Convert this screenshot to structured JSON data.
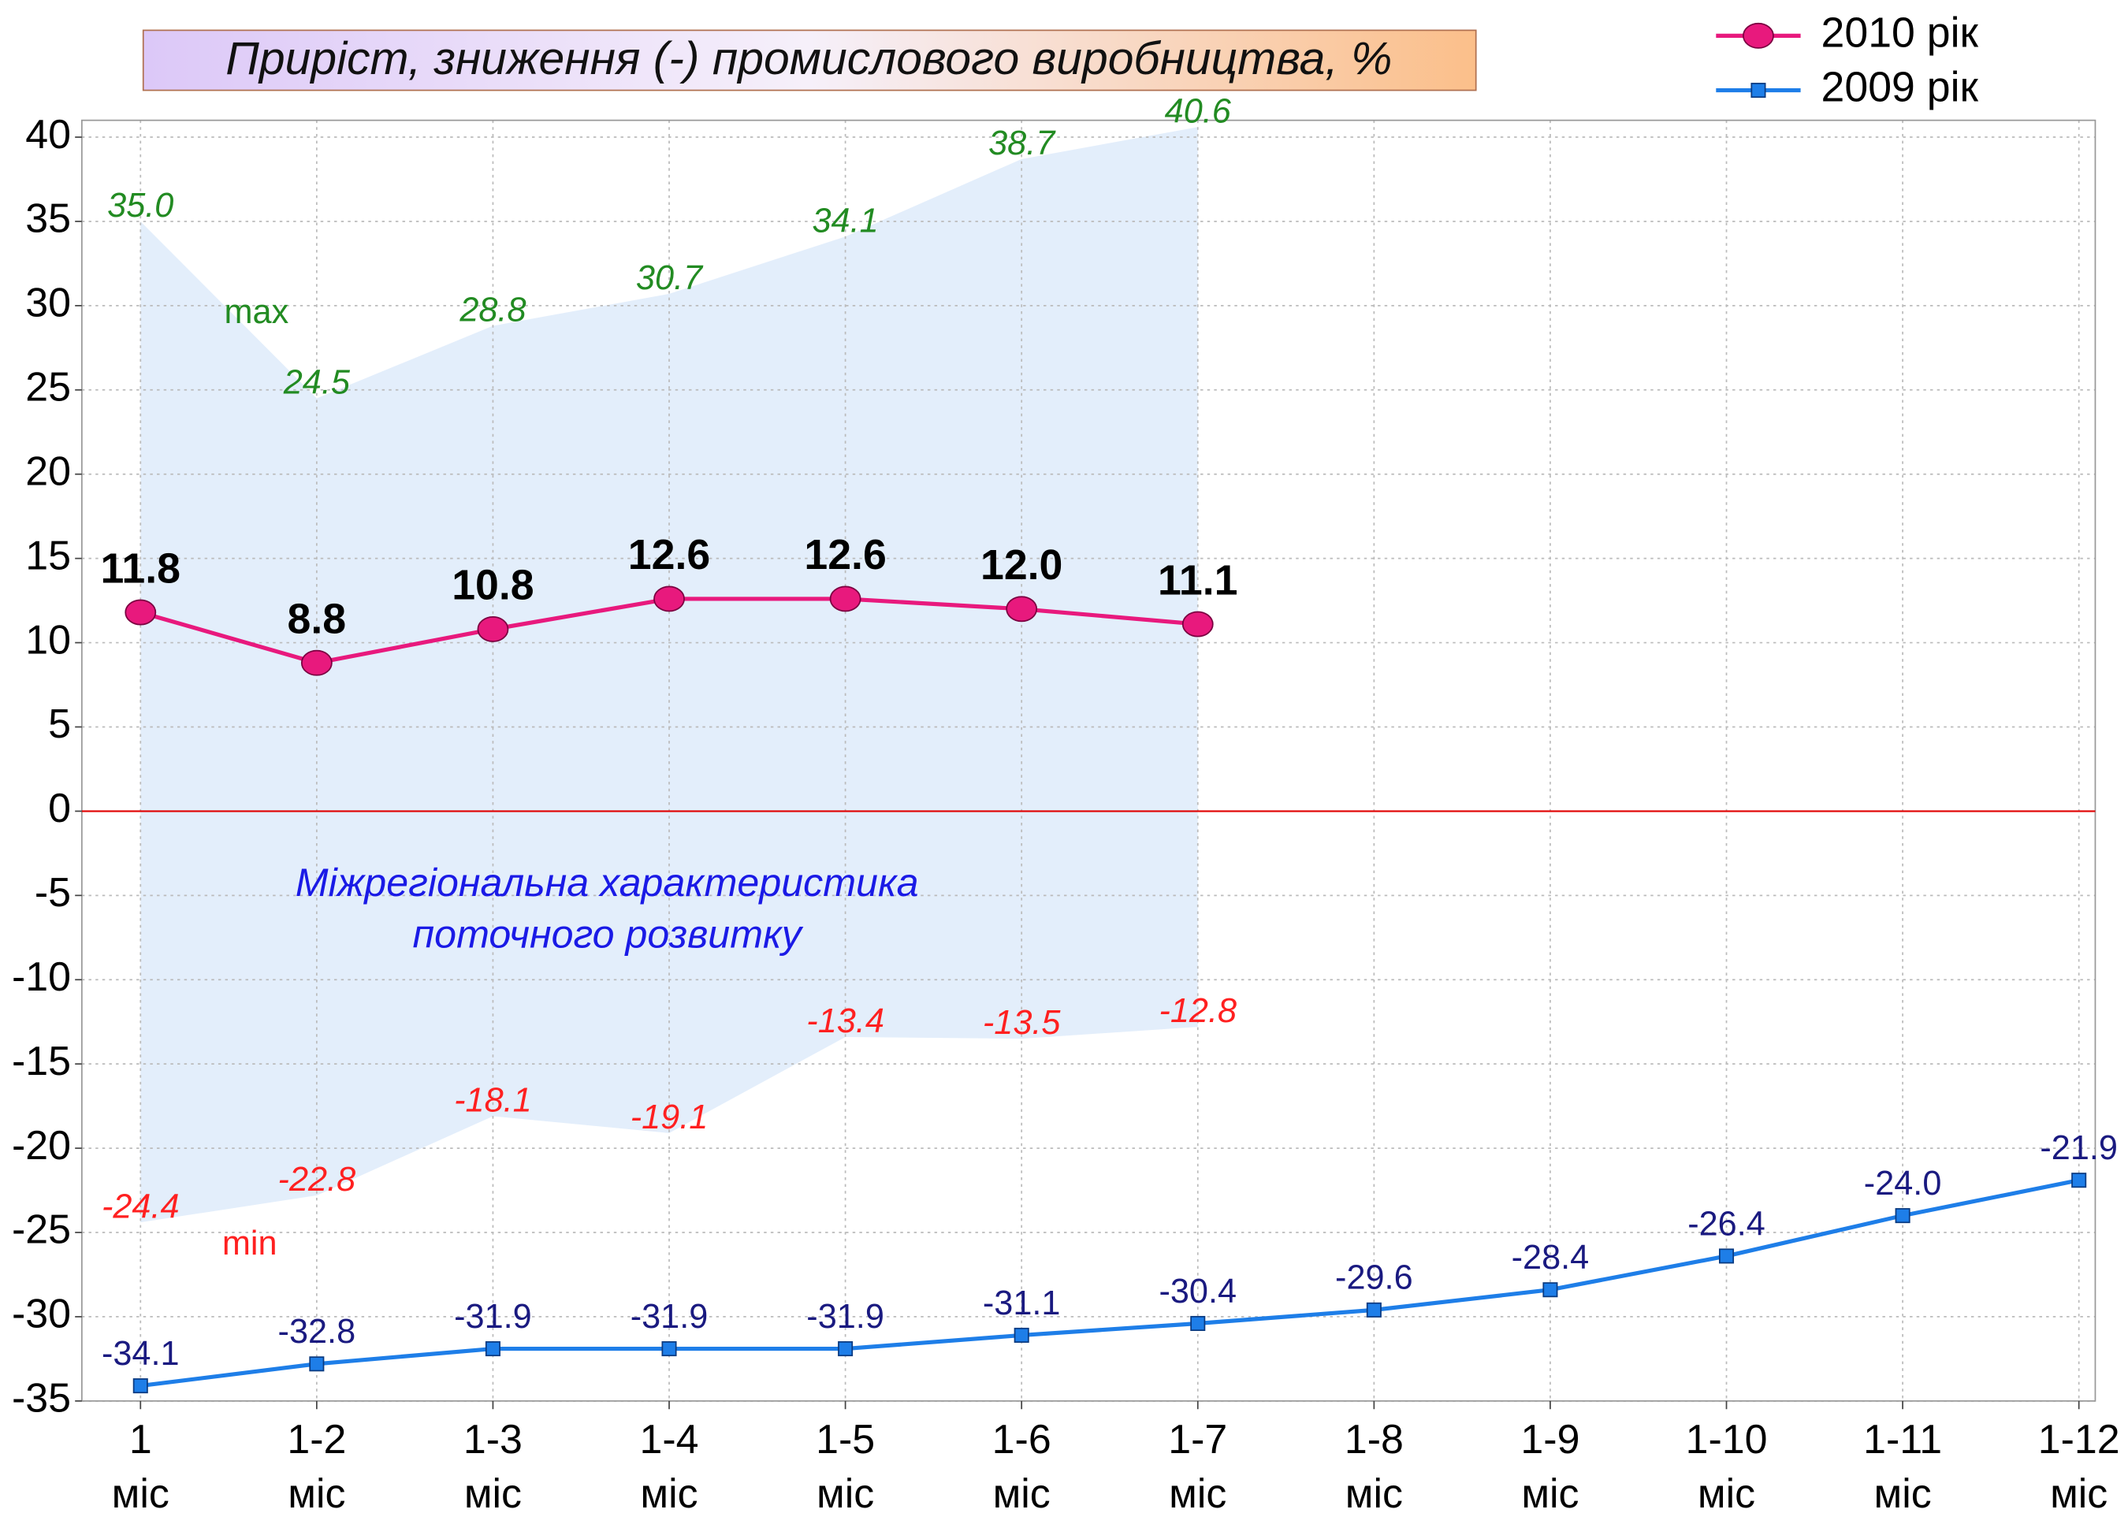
{
  "chart_data": {
    "type": "line",
    "title": "Приріст, зниження (-) промислового виробництва, %",
    "categories": [
      "1 міс",
      "1-2 міс",
      "1-3 міс",
      "1-4 міс",
      "1-5 міс",
      "1-6 міс",
      "1-7 міс",
      "1-8 міс",
      "1-9 міс",
      "1-10 міс",
      "1-11 міс",
      "1-12 міс"
    ],
    "series": [
      {
        "name": "2010 рік",
        "color": "#e8197d",
        "marker": "circle",
        "values": [
          11.8,
          8.8,
          10.8,
          12.6,
          12.6,
          12.0,
          11.1,
          null,
          null,
          null,
          null,
          null
        ],
        "value_labels": [
          "11.8",
          "8.8",
          "10.8",
          "12.6",
          "12.6",
          "12.0",
          "11.1",
          null,
          null,
          null,
          null,
          null
        ]
      },
      {
        "name": "2009 рік",
        "color": "#1e7ee8",
        "marker": "square",
        "values": [
          -34.1,
          -32.8,
          -31.9,
          -31.9,
          -31.9,
          -31.1,
          -30.4,
          -29.6,
          -28.4,
          -26.4,
          -24.0,
          -21.9
        ],
        "value_labels": [
          "-34.1",
          "-32.8",
          "-31.9",
          "-31.9",
          "-31.9",
          "-31.1",
          "-30.4",
          "-29.6",
          "-28.4",
          "-26.4",
          "-24.0",
          "-21.9"
        ]
      }
    ],
    "range": {
      "annotation": [
        "Міжрегіональна характеристика",
        "поточного розвитку"
      ],
      "color": "#e3eefb",
      "max": {
        "name": "max",
        "color": "#228b22",
        "values": [
          35.0,
          24.5,
          28.8,
          30.7,
          34.1,
          38.7,
          40.6
        ],
        "value_labels": [
          "35.0",
          "24.5",
          "28.8",
          "30.7",
          "34.1",
          "38.7",
          "40.6"
        ]
      },
      "min": {
        "name": "min",
        "color": "#ff2020",
        "values": [
          -24.4,
          -22.8,
          -18.1,
          -19.1,
          -13.4,
          -13.5,
          -12.8
        ],
        "value_labels": [
          "-24.4",
          "-22.8",
          "-18.1",
          "-19.1",
          "-13.4",
          "-13.5",
          "-12.8"
        ]
      }
    },
    "ylim": [
      -35,
      41
    ],
    "yticks": [
      -35,
      -30,
      -25,
      -20,
      -15,
      -10,
      -5,
      0,
      5,
      10,
      15,
      20,
      25,
      30,
      35,
      40
    ],
    "grid": true,
    "zero_line_color": "#e00000",
    "legend": "top-right"
  }
}
